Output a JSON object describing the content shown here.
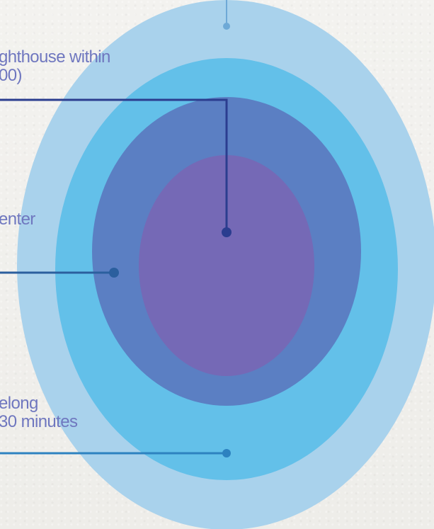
{
  "labels": {
    "top": {
      "line1": "ghthouse within",
      "line2": "00)"
    },
    "mid": {
      "line1": "enter"
    },
    "bottom": {
      "line1": "elong",
      "line2": "30 minutes"
    }
  },
  "colors": {
    "outer_ring": "#a9d2ec",
    "second_ring": "#63c0e9",
    "third_ring": "#5b7fc3",
    "core": "#7569b6",
    "line_top": "#2b3d8f",
    "line_mid": "#2b5f9e",
    "line_bottom": "#2d82c0",
    "label_text": "#6f77bf"
  }
}
